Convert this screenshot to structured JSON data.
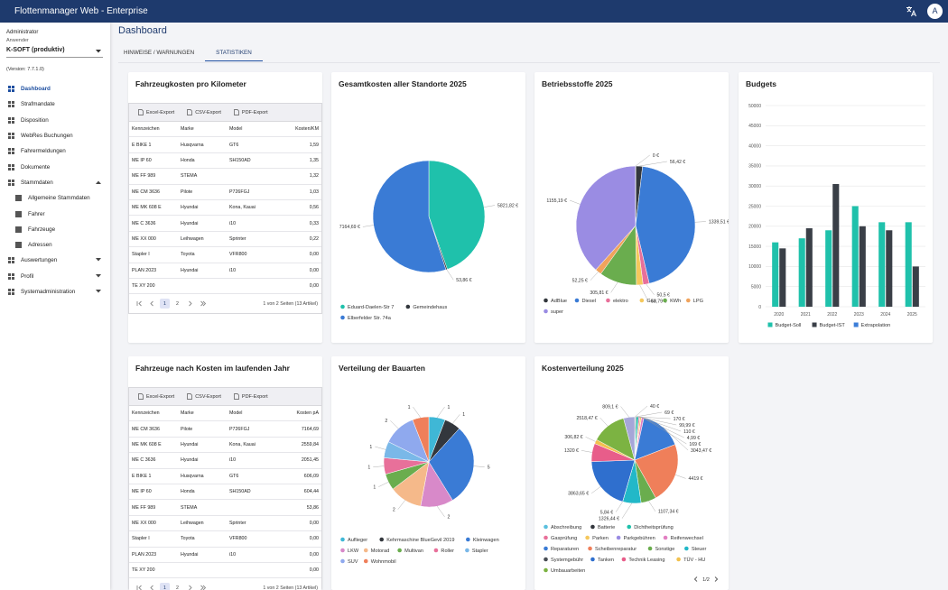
{
  "header": {
    "title": "Flottenmanager Web - Enterprise",
    "avatar": "A"
  },
  "sidebar": {
    "role": "Administrator",
    "user_label": "Anwender",
    "user": "K-SOFT (produktiv)",
    "version": "(Version: 7.7.1.0)",
    "menu": [
      {
        "label": "Dashboard",
        "active": true
      },
      {
        "label": "Strafmandate"
      },
      {
        "label": "Disposition"
      },
      {
        "label": "WebRes Buchungen"
      },
      {
        "label": "Fahrermeldungen"
      },
      {
        "label": "Dokumente"
      },
      {
        "label": "Stammdaten",
        "submenu": "expanded",
        "children": [
          {
            "label": "Allgemeine Stammdaten"
          },
          {
            "label": "Fahrer"
          },
          {
            "label": "Fahrzeuge"
          },
          {
            "label": "Adressen"
          }
        ]
      },
      {
        "label": "Auswertungen",
        "submenu": "collapsed"
      },
      {
        "label": "Profil",
        "submenu": "collapsed"
      },
      {
        "label": "Systemadministration",
        "submenu": "collapsed"
      }
    ]
  },
  "page": {
    "title": "Dashboard",
    "tabs": [
      {
        "label": "HINWEISE / WARNUNGEN"
      },
      {
        "label": "STATISTIKEN",
        "active": true
      }
    ]
  },
  "tables": [
    {
      "title": "Fahrzeugkosten pro Kilometer",
      "exports": [
        "Excel-Export",
        "CSV-Export",
        "PDF-Export"
      ],
      "columns": [
        "Kennzeichen",
        "Marke",
        "Model",
        "Kosten/KM"
      ],
      "rows": [
        [
          "E BIKE 1",
          "Husqvarna",
          "GT6",
          "1,59"
        ],
        [
          "ME IP 60",
          "Honda",
          "SH150AD",
          "1,35"
        ],
        [
          "ME FF 989",
          "STEMA",
          null,
          "1,32"
        ],
        [
          "ME CM 3636",
          "Pilote",
          "P726FGJ",
          "1,03"
        ],
        [
          "ME MK 608 E",
          "Hyundai",
          "Kona, Kauai",
          "0,56"
        ],
        [
          "ME C 3636",
          "Hyundai",
          "i10",
          "0,33"
        ],
        [
          "ME XX 000",
          "Leihwagen",
          "Sprinter",
          "0,22"
        ],
        [
          "Stapler I",
          "Toyota",
          "VFR800",
          "0,00"
        ],
        [
          "PLAN 2023",
          "Hyundai",
          "i10",
          "0,00"
        ],
        [
          "TE XY 200",
          null,
          null,
          "0,00"
        ]
      ],
      "pagination": {
        "pages": [
          "1",
          "2"
        ],
        "info": "1 von 2 Seiten (13 Artikel)"
      }
    },
    {
      "title": "Fahrzeuge nach Kosten im laufenden Jahr",
      "exports": [
        "Excel-Export",
        "CSV-Export",
        "PDF-Export"
      ],
      "columns": [
        "Kennzeichen",
        "Marke",
        "Model",
        "Kosten pA"
      ],
      "rows": [
        [
          "ME CM 3636",
          "Pilote",
          "P726FGJ",
          "7164,69"
        ],
        [
          "ME MK 608 E",
          "Hyundai",
          "Kona, Kauai",
          "2559,84"
        ],
        [
          "ME C 3636",
          "Hyundai",
          "i10",
          "2051,45"
        ],
        [
          "E BIKE 1",
          "Husqvarna",
          "GT6",
          "606,09"
        ],
        [
          "ME IP 60",
          "Honda",
          "SH150AD",
          "604,44"
        ],
        [
          "ME FF 989",
          "STEMA",
          null,
          "53,86"
        ],
        [
          "ME XX 000",
          "Leihwagen",
          "Sprinter",
          "0,00"
        ],
        [
          "Stapler I",
          "Toyota",
          "VFR800",
          "0,00"
        ],
        [
          "PLAN 2023",
          "Hyundai",
          "i10",
          "0,00"
        ],
        [
          "TE XY 200",
          null,
          null,
          "0,00"
        ]
      ],
      "pagination": {
        "pages": [
          "1",
          "2"
        ],
        "info": "1 von 2 Seiten (13 Artikel)"
      }
    }
  ],
  "chart_data": [
    {
      "type": "pie",
      "title": "Gesamtkosten aller Standorte 2025",
      "categories": [
        "Eduard-Daelen-Str 7",
        "Gemeindehaus",
        "Elberfelder Str. 74a"
      ],
      "values": [
        5821.82,
        53.86,
        7164.69
      ],
      "value_labels": [
        "5821,82 €",
        "53,86 €",
        "7164,69 €"
      ],
      "colors": [
        "#1fc1ab",
        "#33373d",
        "#3a7bd5"
      ]
    },
    {
      "type": "pie",
      "title": "Betriebsstoffe 2025",
      "categories": [
        "AdBlue",
        "Diesel",
        "elektro",
        "Gas",
        "KWh",
        "LPG",
        "super",
        null
      ],
      "values": [
        56.42,
        1339.51,
        50.5,
        53.79,
        305.81,
        52.25,
        1155.19,
        0
      ],
      "value_labels": [
        "56,42 €",
        "1339,51 €",
        "50,5 €",
        "53,79 €",
        "305,81 €",
        "52,25 €",
        "1155,19 €",
        "0 €"
      ],
      "colors": [
        "#33373d",
        "#3a7bd5",
        "#e8709a",
        "#f5c85c",
        "#6aad4e",
        "#f0a35c",
        "#9a8ce3",
        "#c8c8c8"
      ]
    },
    {
      "type": "bar",
      "title": "Budgets",
      "categories": [
        "2020",
        "2021",
        "2022",
        "2023",
        "2024",
        "2025"
      ],
      "series": [
        {
          "name": "Budget-Soll",
          "color": "#1fc1ab",
          "values": [
            16000,
            17000,
            19000,
            25000,
            21000,
            21000
          ]
        },
        {
          "name": "Budget-IST",
          "color": "#3a3f47",
          "values": [
            14500,
            19500,
            30500,
            20000,
            19000,
            10000
          ]
        },
        {
          "name": "Extrapolation",
          "color": "#3b7dd8",
          "values": [
            null,
            null,
            null,
            null,
            null,
            null
          ]
        }
      ],
      "ylim": [
        0,
        50000
      ],
      "yticks": [
        0,
        5000,
        10000,
        15000,
        20000,
        25000,
        30000,
        35000,
        40000,
        45000,
        50000
      ],
      "grid": true,
      "legend": "bottom"
    },
    {
      "type": "pie",
      "title": "Verteilung der Bauarten",
      "categories": [
        "Auflieger",
        "Kehrmaschine BlueGevil 2019",
        "Kleinwagen",
        "LKW",
        "Motorad",
        "Multivan",
        "Roller",
        "Stapler",
        "SUV",
        "Wohnmobil"
      ],
      "values": [
        1,
        1,
        5,
        2,
        2,
        1,
        1,
        1,
        2,
        1
      ],
      "colors": [
        "#3fb7d6",
        "#33373d",
        "#3a7bd5",
        "#d889c9",
        "#f5b98a",
        "#6aad4e",
        "#e8709a",
        "#7ab8e8",
        "#8fa9ee",
        "#ef7f5a"
      ]
    },
    {
      "type": "pie",
      "title": "Kostenverteilung 2025",
      "categories": [
        "Abschreibung",
        "Batterie",
        "Dichtheitsprüfung",
        "Gasprüfung",
        "Parken",
        "Parkgebühren",
        "Reifenwechsel",
        "Reparaturen",
        "Scheibenreparatur",
        "Sonstige",
        "Steuer",
        "Systemgebühr",
        "Tanken",
        "Technik Leasing",
        "TÜV - HU",
        "Umbauarbeiten",
        null
      ],
      "values": [
        40,
        69,
        170,
        99.99,
        110,
        4.99,
        169,
        3043.47,
        4419,
        1107.34,
        1326.44,
        5.84,
        3863.65,
        1320,
        306.82,
        2518.47,
        809.1
      ],
      "value_labels": [
        "40 €",
        "69 €",
        "170 €",
        "99,99 €",
        "110 €",
        "4,99 €",
        "169 €",
        "3043,47 €",
        "4419 €",
        "1107,34 €",
        "1326,44 €",
        "5,84 €",
        "3863,65 €",
        "1320 €",
        "306,82 €",
        "2518,47 €",
        "809,1 €"
      ],
      "colors": [
        "#5bc0de",
        "#33373d",
        "#1fc1ab",
        "#e8709a",
        "#f5c85c",
        "#9a8ce3",
        "#e27fc2",
        "#3a7bd5",
        "#ef7f5a",
        "#6aad4e",
        "#22b8c8",
        "#4a4e55",
        "#2f6fce",
        "#e85d8a",
        "#f2c14e",
        "#7cb342",
        "#a6a6d8"
      ],
      "legend_page": "1/2"
    }
  ]
}
